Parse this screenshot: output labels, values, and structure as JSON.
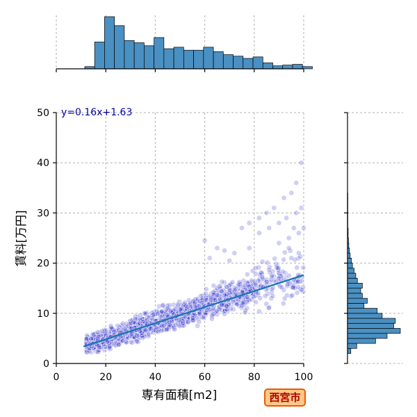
{
  "chart_data": {
    "type": "scatter",
    "title": "",
    "xlabel": "専有面積[m2]",
    "ylabel": "賃料[万円]",
    "xlim": [
      0,
      100
    ],
    "ylim": [
      0,
      50
    ],
    "x_ticks": [
      "0",
      "20",
      "40",
      "60",
      "80",
      "100"
    ],
    "y_ticks": [
      "0",
      "10",
      "20",
      "30",
      "40",
      "50"
    ],
    "grid": true,
    "regression": {
      "slope": 0.16,
      "intercept": 1.63,
      "x_range": [
        11,
        100
      ],
      "equation_label": "y=0.16x+1.63"
    },
    "badge_label": "西宮市",
    "colors": {
      "points": "#2a2acc",
      "fit_line": "#1f77b4",
      "bars": "#4a90c2",
      "equation": "#0000aa",
      "badge_fill": "#ffc985",
      "badge_border": "#e8590c",
      "badge_text": "#b00000"
    },
    "top_histogram": {
      "bin_start": 11.5,
      "bin_width": 4,
      "counts": [
        3,
        36,
        70,
        58,
        38,
        35,
        31,
        42,
        27,
        29,
        25,
        25,
        29,
        23,
        19,
        17,
        14,
        16,
        8,
        4,
        5,
        6,
        3
      ]
    },
    "right_histogram": {
      "bin_start": 2,
      "bin_width": 1,
      "counts": [
        10,
        28,
        85,
        120,
        160,
        140,
        145,
        105,
        90,
        50,
        60,
        45,
        40,
        45,
        30,
        25,
        20,
        15,
        12,
        8,
        6,
        4,
        3,
        2,
        2,
        1,
        1,
        1,
        1,
        1,
        1,
        1
      ]
    },
    "clusters": [
      {
        "x_range": [
          12,
          30
        ],
        "y_center_slope": 0.16,
        "y_center_intercept": 1.6,
        "spread": 1.6,
        "count": 520
      },
      {
        "x_range": [
          30,
          55
        ],
        "y_center_slope": 0.16,
        "y_center_intercept": 1.6,
        "spread": 2.2,
        "count": 560
      },
      {
        "x_range": [
          55,
          80
        ],
        "y_center_slope": 0.17,
        "y_center_intercept": 1.2,
        "spread": 2.8,
        "count": 380
      },
      {
        "x_range": [
          80,
          100
        ],
        "y_center_slope": 0.17,
        "y_center_intercept": 1.2,
        "spread": 4.0,
        "count": 130
      }
    ],
    "outliers": [
      [
        60,
        24.5
      ],
      [
        62,
        21
      ],
      [
        65,
        23
      ],
      [
        68,
        22.5
      ],
      [
        70,
        20.5
      ],
      [
        72,
        22
      ],
      [
        75,
        27
      ],
      [
        78,
        28
      ],
      [
        78,
        23
      ],
      [
        82,
        26
      ],
      [
        82,
        29
      ],
      [
        85,
        30
      ],
      [
        86,
        27
      ],
      [
        88,
        31
      ],
      [
        90,
        28
      ],
      [
        90,
        24
      ],
      [
        92,
        33
      ],
      [
        93,
        29
      ],
      [
        94,
        25
      ],
      [
        95,
        34
      ],
      [
        95,
        21
      ],
      [
        96,
        27
      ],
      [
        97,
        30
      ],
      [
        98,
        26
      ],
      [
        98,
        22
      ],
      [
        99,
        31
      ],
      [
        99,
        40
      ],
      [
        100,
        27
      ],
      [
        97,
        36
      ],
      [
        94,
        23
      ]
    ]
  }
}
